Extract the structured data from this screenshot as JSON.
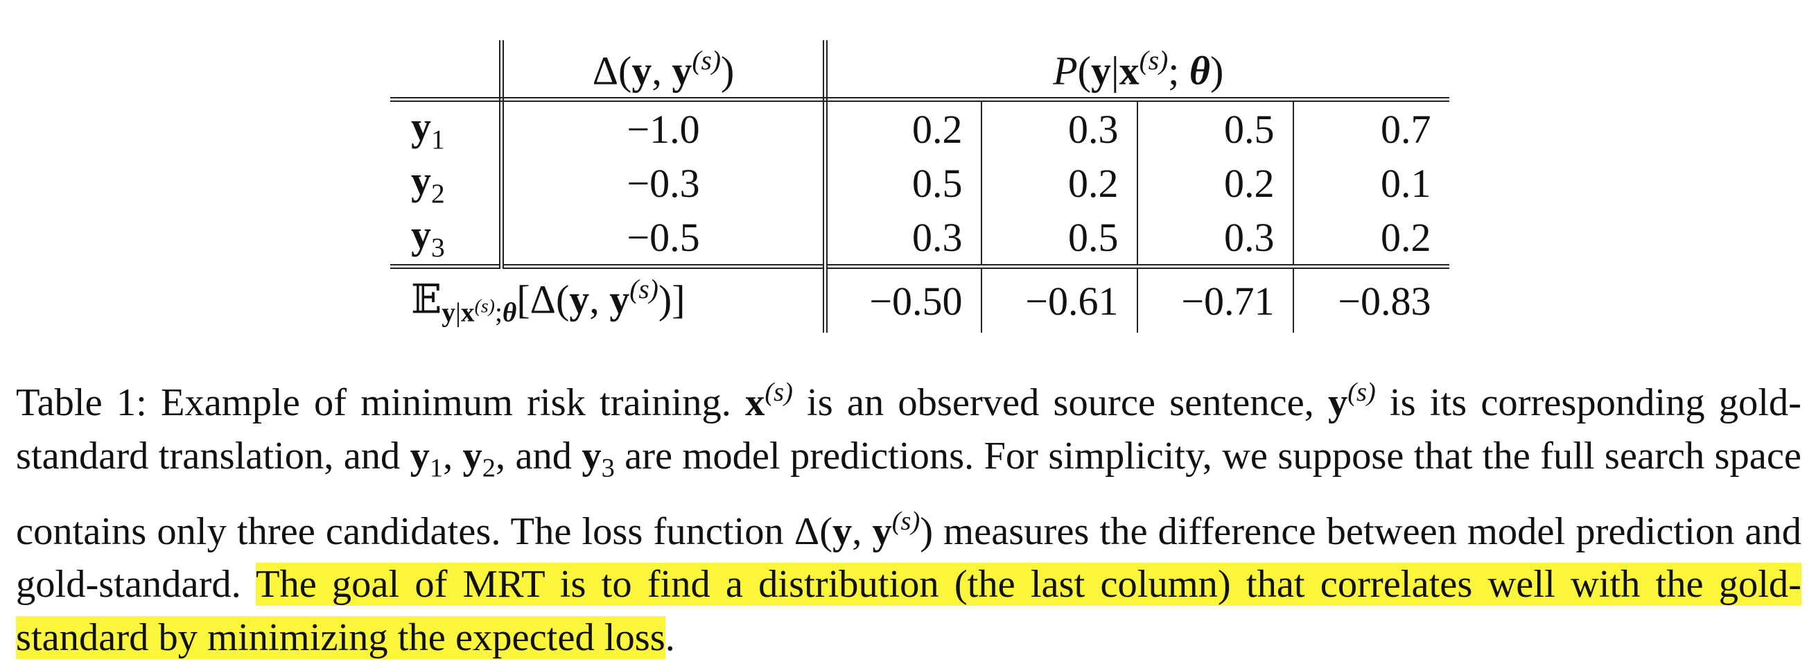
{
  "table": {
    "header": [
      [
        {
          "text": "Δ(",
          "style": ""
        },
        {
          "text": "y",
          "style": "bold"
        },
        {
          "text": ", ",
          "style": ""
        },
        {
          "text": "y",
          "style": "bold"
        },
        {
          "text": "(s)",
          "style": "sup italic"
        },
        {
          "text": ")",
          "style": ""
        }
      ],
      [
        {
          "text": "P",
          "style": "italic"
        },
        {
          "text": "(",
          "style": ""
        },
        {
          "text": "y",
          "style": "bold"
        },
        {
          "text": "|",
          "style": ""
        },
        {
          "text": "x",
          "style": "bold"
        },
        {
          "text": "(s)",
          "style": "sup italic"
        },
        {
          "text": "; ",
          "style": ""
        },
        {
          "text": "θ",
          "style": "bold italic"
        },
        {
          "text": ")",
          "style": ""
        }
      ]
    ],
    "rows": [
      {
        "label": [
          {
            "text": "y",
            "style": "bold"
          },
          {
            "text": "1",
            "style": "sub"
          }
        ],
        "delta": "−1.0",
        "probs": [
          "0.2",
          "0.3",
          "0.5",
          "0.7"
        ]
      },
      {
        "label": [
          {
            "text": "y",
            "style": "bold"
          },
          {
            "text": "2",
            "style": "sub"
          }
        ],
        "delta": "−0.3",
        "probs": [
          "0.5",
          "0.2",
          "0.2",
          "0.1"
        ]
      },
      {
        "label": [
          {
            "text": "y",
            "style": "bold"
          },
          {
            "text": "3",
            "style": "sub"
          }
        ],
        "delta": "−0.5",
        "probs": [
          "0.3",
          "0.5",
          "0.3",
          "0.2"
        ]
      }
    ],
    "footer": {
      "label": [
        {
          "text": "𝔼",
          "style": ""
        },
        {
          "text": "y",
          "style": "sub bold"
        },
        {
          "text": "|",
          "style": "sub"
        },
        {
          "text": "x",
          "style": "sub bold"
        },
        {
          "text": "(s)",
          "style": "subsup italic"
        },
        {
          "text": ";",
          "style": "sub"
        },
        {
          "text": "θ",
          "style": "sub bold italic"
        },
        {
          "text": "[Δ(",
          "style": ""
        },
        {
          "text": "y",
          "style": "bold"
        },
        {
          "text": ", ",
          "style": ""
        },
        {
          "text": "y",
          "style": "bold"
        },
        {
          "text": "(s)",
          "style": "sup italic"
        },
        {
          "text": ")]",
          "style": ""
        }
      ],
      "values": [
        "−0.50",
        "−0.61",
        "−0.71",
        "−0.83"
      ]
    }
  },
  "caption": [
    {
      "text": "Table 1: Example of minimum risk training. ",
      "style": ""
    },
    {
      "text": "x",
      "style": "bold"
    },
    {
      "text": "(s)",
      "style": "sup italic"
    },
    {
      "text": " is an observed source sentence, ",
      "style": ""
    },
    {
      "text": "y",
      "style": "bold"
    },
    {
      "text": "(s)",
      "style": "sup italic"
    },
    {
      "text": " is its corresponding gold-standard translation, and ",
      "style": ""
    },
    {
      "text": "y",
      "style": "bold"
    },
    {
      "text": "1",
      "style": "sub"
    },
    {
      "text": ", ",
      "style": ""
    },
    {
      "text": "y",
      "style": "bold"
    },
    {
      "text": "2",
      "style": "sub"
    },
    {
      "text": ", and ",
      "style": ""
    },
    {
      "text": "y",
      "style": "bold"
    },
    {
      "text": "3",
      "style": "sub"
    },
    {
      "text": " are model predictions. For simplicity, we suppose that the full search space contains only three candidates. The loss function Δ(",
      "style": ""
    },
    {
      "text": "y",
      "style": "bold"
    },
    {
      "text": ", ",
      "style": ""
    },
    {
      "text": "y",
      "style": "bold"
    },
    {
      "text": "(s)",
      "style": "sup italic"
    },
    {
      "text": ") measures the difference between model prediction and gold-standard. ",
      "style": ""
    },
    {
      "text": "The goal of MRT is to find a distribution (the last column) that correlates well with the gold-standard by minimizing the expected loss",
      "style": "highlight"
    },
    {
      "text": ".",
      "style": ""
    }
  ]
}
